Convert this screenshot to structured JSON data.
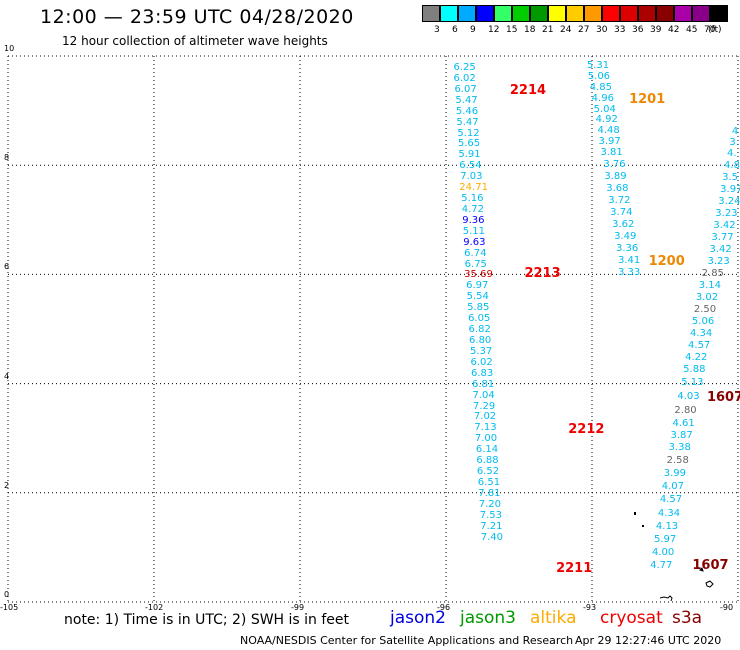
{
  "header": {
    "title": "12:00 — 23:59 UTC 04/28/2020",
    "subtitle": "12 hour collection of altimeter wave heights"
  },
  "legend": {
    "bins": [
      {
        "label": "3",
        "color": "#7f7f7f"
      },
      {
        "label": "6",
        "color": "#00ffff"
      },
      {
        "label": "9",
        "color": "#00aaff"
      },
      {
        "label": "12",
        "color": "#0000ff"
      },
      {
        "label": "15",
        "color": "#33ff66"
      },
      {
        "label": "18",
        "color": "#00cc00"
      },
      {
        "label": "21",
        "color": "#009900"
      },
      {
        "label": "24",
        "color": "#ffff00"
      },
      {
        "label": "27",
        "color": "#ffcc00"
      },
      {
        "label": "30",
        "color": "#ff9900"
      },
      {
        "label": "33",
        "color": "#ff0000"
      },
      {
        "label": "36",
        "color": "#dd0000"
      },
      {
        "label": "39",
        "color": "#aa0000"
      },
      {
        "label": "42",
        "color": "#880000"
      },
      {
        "label": "45",
        "color": "#aa00aa"
      },
      {
        "label": "70",
        "color": "#880088"
      },
      {
        "label": "",
        "color": "#000000"
      }
    ],
    "unit": "(ft)"
  },
  "axes": {
    "lon_ticks": [
      "-105",
      "-102",
      "-99",
      "-96",
      "-93",
      "-90"
    ],
    "lat_ticks": [
      "0",
      "2",
      "4",
      "6",
      "8",
      "10"
    ]
  },
  "tracks": [
    {
      "color": "#00bbee",
      "points": [
        {
          "lat": 9.78,
          "lon": -95.6,
          "v": "6.25"
        },
        {
          "lat": 9.58,
          "lon": -95.6,
          "v": "6.02"
        },
        {
          "lat": 9.38,
          "lon": -95.58,
          "v": "6.07"
        },
        {
          "lat": 9.18,
          "lon": -95.56,
          "v": "5.47"
        },
        {
          "lat": 8.98,
          "lon": -95.55,
          "v": "5.46"
        },
        {
          "lat": 8.78,
          "lon": -95.54,
          "v": "5.47"
        },
        {
          "lat": 8.58,
          "lon": -95.52,
          "v": "5.12"
        },
        {
          "lat": 8.38,
          "lon": -95.51,
          "v": "5.65"
        },
        {
          "lat": 8.18,
          "lon": -95.5,
          "v": "5.91"
        },
        {
          "lat": 7.98,
          "lon": -95.48,
          "v": "6.54"
        },
        {
          "lat": 7.78,
          "lon": -95.46,
          "v": "7.03"
        },
        {
          "lat": 7.58,
          "lon": -95.48,
          "v": "24.71",
          "c": "#ffaa00"
        },
        {
          "lat": 7.38,
          "lon": -95.44,
          "v": "5.16"
        },
        {
          "lat": 7.18,
          "lon": -95.43,
          "v": "4.72"
        },
        {
          "lat": 6.98,
          "lon": -95.42,
          "v": "9.36",
          "c": "#0000ff"
        },
        {
          "lat": 6.78,
          "lon": -95.41,
          "v": "5.11"
        },
        {
          "lat": 6.58,
          "lon": -95.4,
          "v": "9.63",
          "c": "#0000ff"
        },
        {
          "lat": 6.38,
          "lon": -95.38,
          "v": "6.74"
        },
        {
          "lat": 6.18,
          "lon": -95.37,
          "v": "6.75"
        },
        {
          "lat": 5.98,
          "lon": -95.38,
          "v": "35.69",
          "c": "#cc0000"
        },
        {
          "lat": 5.78,
          "lon": -95.34,
          "v": "6.97"
        },
        {
          "lat": 5.58,
          "lon": -95.33,
          "v": "5.54"
        },
        {
          "lat": 5.38,
          "lon": -95.32,
          "v": "5.85"
        },
        {
          "lat": 5.18,
          "lon": -95.3,
          "v": "6.05"
        },
        {
          "lat": 4.98,
          "lon": -95.29,
          "v": "6.82"
        },
        {
          "lat": 4.78,
          "lon": -95.28,
          "v": "6.80"
        },
        {
          "lat": 4.58,
          "lon": -95.26,
          "v": "5.37"
        },
        {
          "lat": 4.38,
          "lon": -95.25,
          "v": "6.02"
        },
        {
          "lat": 4.18,
          "lon": -95.24,
          "v": "6.83"
        },
        {
          "lat": 3.98,
          "lon": -95.22,
          "v": "6.81"
        },
        {
          "lat": 3.78,
          "lon": -95.21,
          "v": "7.04"
        },
        {
          "lat": 3.58,
          "lon": -95.2,
          "v": "7.29"
        },
        {
          "lat": 3.38,
          "lon": -95.18,
          "v": "7.02"
        },
        {
          "lat": 3.18,
          "lon": -95.17,
          "v": "7.13"
        },
        {
          "lat": 2.98,
          "lon": -95.16,
          "v": "7.00"
        },
        {
          "lat": 2.78,
          "lon": -95.14,
          "v": "6.14"
        },
        {
          "lat": 2.58,
          "lon": -95.13,
          "v": "6.88"
        },
        {
          "lat": 2.38,
          "lon": -95.12,
          "v": "6.52"
        },
        {
          "lat": 2.18,
          "lon": -95.1,
          "v": "6.51"
        },
        {
          "lat": 1.98,
          "lon": -95.09,
          "v": "7.81"
        },
        {
          "lat": 1.78,
          "lon": -95.08,
          "v": "7.20"
        },
        {
          "lat": 1.58,
          "lon": -95.06,
          "v": "7.53"
        },
        {
          "lat": 1.38,
          "lon": -95.05,
          "v": "7.21"
        },
        {
          "lat": 1.18,
          "lon": -95.04,
          "v": "7.40"
        }
      ]
    },
    {
      "color": "#00bbee",
      "points": [
        {
          "lat": 9.82,
          "lon": -92.86,
          "v": "5.31"
        },
        {
          "lat": 9.62,
          "lon": -92.84,
          "v": "5.06"
        },
        {
          "lat": 9.42,
          "lon": -92.8,
          "v": "4.85"
        },
        {
          "lat": 9.22,
          "lon": -92.76,
          "v": "4.96"
        },
        {
          "lat": 9.02,
          "lon": -92.72,
          "v": "5.04"
        },
        {
          "lat": 8.82,
          "lon": -92.68,
          "v": "4.92"
        },
        {
          "lat": 8.62,
          "lon": -92.64,
          "v": "4.48"
        },
        {
          "lat": 8.42,
          "lon": -92.62,
          "v": "3.97"
        },
        {
          "lat": 8.22,
          "lon": -92.58,
          "v": "3.81"
        },
        {
          "lat": 8.0,
          "lon": -92.52,
          "v": "3.76"
        },
        {
          "lat": 7.78,
          "lon": -92.5,
          "v": "3.89"
        },
        {
          "lat": 7.56,
          "lon": -92.46,
          "v": "3.68"
        },
        {
          "lat": 7.34,
          "lon": -92.42,
          "v": "3.72"
        },
        {
          "lat": 7.12,
          "lon": -92.38,
          "v": "3.74"
        },
        {
          "lat": 6.9,
          "lon": -92.34,
          "v": "3.62"
        },
        {
          "lat": 6.68,
          "lon": -92.3,
          "v": "3.49"
        },
        {
          "lat": 6.46,
          "lon": -92.26,
          "v": "3.36"
        },
        {
          "lat": 6.24,
          "lon": -92.22,
          "v": "3.41"
        },
        {
          "lat": 6.02,
          "lon": -92.22,
          "v": "3.33"
        }
      ]
    },
    {
      "color": "#00bbee",
      "points": [
        {
          "lat": 8.6,
          "lon": -89.88,
          "v": "4"
        },
        {
          "lat": 8.4,
          "lon": -89.93,
          "v": "3."
        },
        {
          "lat": 8.2,
          "lon": -89.98,
          "v": "4."
        },
        {
          "lat": 7.98,
          "lon": -90.04,
          "v": "4.8"
        },
        {
          "lat": 7.76,
          "lon": -90.08,
          "v": "3.5"
        },
        {
          "lat": 7.54,
          "lon": -90.12,
          "v": "3.97"
        },
        {
          "lat": 7.32,
          "lon": -90.16,
          "v": "3.24"
        },
        {
          "lat": 7.1,
          "lon": -90.22,
          "v": "3.23"
        },
        {
          "lat": 6.88,
          "lon": -90.26,
          "v": "3.42"
        },
        {
          "lat": 6.66,
          "lon": -90.3,
          "v": "3.77"
        },
        {
          "lat": 6.44,
          "lon": -90.34,
          "v": "3.42"
        },
        {
          "lat": 6.22,
          "lon": -90.38,
          "v": "3.23"
        },
        {
          "lat": 6.0,
          "lon": -90.5,
          "v": "2.85",
          "c": "#666666"
        },
        {
          "lat": 5.78,
          "lon": -90.56,
          "v": "3.14"
        },
        {
          "lat": 5.56,
          "lon": -90.62,
          "v": "3.02"
        },
        {
          "lat": 5.34,
          "lon": -90.66,
          "v": "2.50",
          "c": "#666666"
        },
        {
          "lat": 5.12,
          "lon": -90.7,
          "v": "5.06"
        },
        {
          "lat": 4.9,
          "lon": -90.74,
          "v": "4.34"
        },
        {
          "lat": 4.68,
          "lon": -90.78,
          "v": "4.57"
        },
        {
          "lat": 4.46,
          "lon": -90.84,
          "v": "4.22"
        },
        {
          "lat": 4.24,
          "lon": -90.88,
          "v": "5.88"
        },
        {
          "lat": 4.02,
          "lon": -90.92,
          "v": "5.13"
        },
        {
          "lat": 3.76,
          "lon": -91.0,
          "v": "4.03"
        },
        {
          "lat": 3.5,
          "lon": -91.06,
          "v": "2.80",
          "c": "#666666"
        },
        {
          "lat": 3.26,
          "lon": -91.1,
          "v": "4.61"
        },
        {
          "lat": 3.04,
          "lon": -91.14,
          "v": "3.87"
        },
        {
          "lat": 2.82,
          "lon": -91.18,
          "v": "3.38"
        },
        {
          "lat": 2.58,
          "lon": -91.22,
          "v": "2.58",
          "c": "#666666"
        },
        {
          "lat": 2.34,
          "lon": -91.28,
          "v": "3.99"
        },
        {
          "lat": 2.1,
          "lon": -91.32,
          "v": "4.07"
        },
        {
          "lat": 1.86,
          "lon": -91.36,
          "v": "4.57"
        },
        {
          "lat": 1.62,
          "lon": -91.4,
          "v": "4.34"
        },
        {
          "lat": 1.38,
          "lon": -91.44,
          "v": "4.13"
        },
        {
          "lat": 1.14,
          "lon": -91.48,
          "v": "5.97"
        },
        {
          "lat": 0.9,
          "lon": -91.52,
          "v": "4.00"
        },
        {
          "lat": 0.66,
          "lon": -91.56,
          "v": "4.77"
        }
      ]
    }
  ],
  "passes": [
    {
      "text": "2214",
      "lat": 9.38,
      "lon": -94.4,
      "color": "#ee0000"
    },
    {
      "text": "1201",
      "lat": 9.22,
      "lon": -91.95,
      "color": "#ee8800"
    },
    {
      "text": "2213",
      "lat": 6.02,
      "lon": -94.1,
      "color": "#ee0000"
    },
    {
      "text": "1200",
      "lat": 6.24,
      "lon": -91.55,
      "color": "#ee8800"
    },
    {
      "text": "1607",
      "lat": 3.76,
      "lon": -90.35,
      "color": "#880000"
    },
    {
      "text": "2212",
      "lat": 3.16,
      "lon": -93.2,
      "color": "#ee0000"
    },
    {
      "text": "1607",
      "lat": 0.68,
      "lon": -90.65,
      "color": "#880000"
    },
    {
      "text": "2211",
      "lat": 0.62,
      "lon": -93.45,
      "color": "#ee0000"
    }
  ],
  "notes": {
    "text": "note:  1) Time is in UTC;  2) SWH is in feet"
  },
  "satellites": [
    {
      "name": "jason2",
      "color": "#0000dd"
    },
    {
      "name": "jason3",
      "color": "#009900"
    },
    {
      "name": "altika",
      "color": "#ffaa00"
    },
    {
      "name": "cryosat",
      "color": "#ee0000"
    },
    {
      "name": "s3a",
      "color": "#880000"
    }
  ],
  "footer": {
    "left": "NOAA/NESDIS Center for Satellite Applications and Research",
    "right": "Apr 29 12:27:46 UTC 2020"
  }
}
